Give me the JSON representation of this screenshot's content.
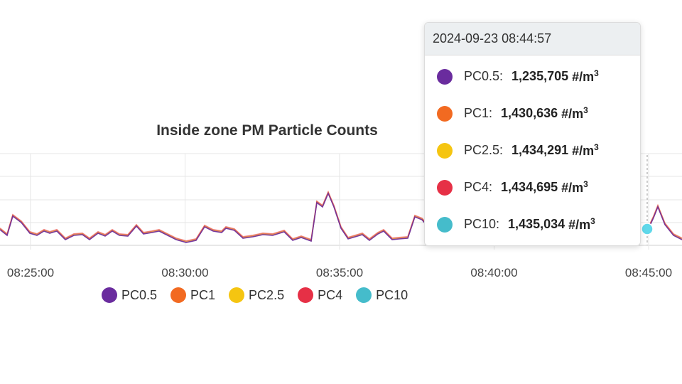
{
  "colors": {
    "PC0.5": "#6a2c9e",
    "PC1": "#f26a21",
    "PC2.5": "#f5c511",
    "PC4": "#e63046",
    "PC10": "#45bccb",
    "grid": "#e6e6e6"
  },
  "chart_data": {
    "type": "line",
    "title": "Inside zone PM Particle Counts",
    "xlabel": "",
    "ylabel": "",
    "x_ticks": [
      "08:25:00",
      "08:30:00",
      "08:35:00",
      "08:40:00",
      "08:45:00"
    ],
    "legend_position": "bottom",
    "grid": true,
    "series": [
      {
        "name": "PC0.5"
      },
      {
        "name": "PC1"
      },
      {
        "name": "PC2.5"
      },
      {
        "name": "PC4"
      },
      {
        "name": "PC10"
      }
    ],
    "hover_time": "08:44:57"
  },
  "tooltip": {
    "header": "2024-09-23 08:44:57",
    "unit": "#/m",
    "unit_sup": "3",
    "rows": [
      {
        "name": "PC0.5:",
        "value": "1,235,705"
      },
      {
        "name": "PC1:",
        "value": "1,430,636"
      },
      {
        "name": "PC2.5:",
        "value": "1,434,291"
      },
      {
        "name": "PC4:",
        "value": "1,434,695"
      },
      {
        "name": "PC10:",
        "value": "1,435,034"
      }
    ]
  }
}
